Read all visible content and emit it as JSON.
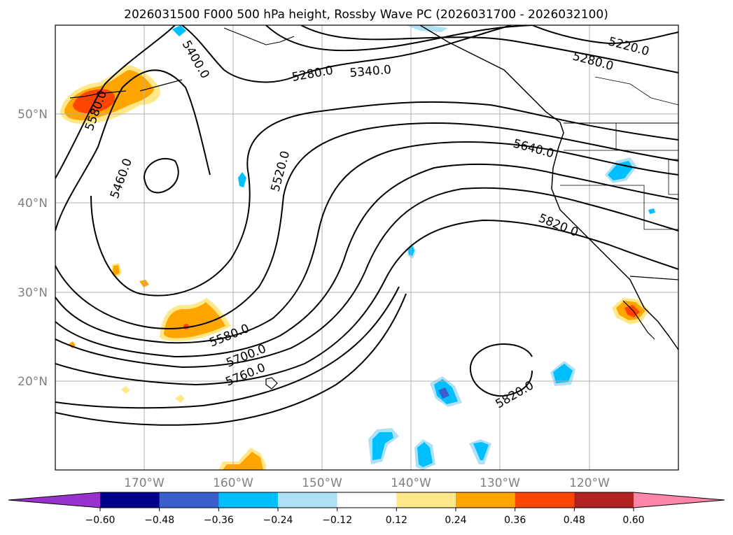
{
  "title": "2026031500 F000 500 hPa height, Rossby Wave PC (2026031700 - 2026032100)",
  "lat_labels": [
    "50°N",
    "40°N",
    "30°N",
    "20°N"
  ],
  "lon_labels": [
    "170°W",
    "160°W",
    "150°W",
    "140°W",
    "130°W",
    "120°W"
  ],
  "contour_labels": [
    "5220.0",
    "5280.0",
    "5280.0",
    "5340.0",
    "5400.0",
    "5460.0",
    "5520.0",
    "5580.0",
    "5580.0",
    "5640.0",
    "5700.0",
    "5760.0",
    "5820.0",
    "5820.0"
  ],
  "colorbar": {
    "tick_labels": [
      "−0.60",
      "−0.48",
      "−0.36",
      "−0.24",
      "−0.12",
      "0.12",
      "0.24",
      "0.36",
      "0.48",
      "0.60"
    ],
    "colors": [
      "#9932cc",
      "#00008b",
      "#3a5fcd",
      "#00bfff",
      "#b0e0f6",
      "#ffffff",
      "#ffe88a",
      "#ffa500",
      "#ff4500",
      "#b22222",
      "#ff86a8"
    ]
  },
  "anomaly_colors": {
    "pos_light": "#ffe88a",
    "pos_mid": "#ffa500",
    "pos_strong": "#ff4500",
    "neg_light": "#b0e0f6",
    "neg_mid": "#00bfff",
    "neg_strong": "#3a5fcd"
  }
}
